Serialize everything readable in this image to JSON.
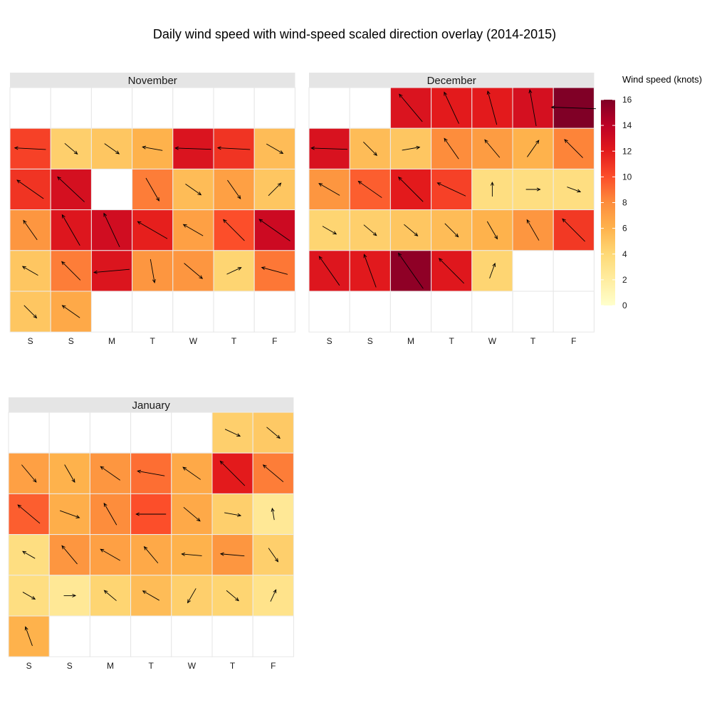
{
  "chart_data": {
    "type": "heatmap",
    "title": "Daily wind speed with wind-speed scaled direction overlay (2014-2015)",
    "weekday_labels": [
      "S",
      "S",
      "M",
      "T",
      "W",
      "T",
      "F"
    ],
    "legend": {
      "title": "Wind speed (knots)",
      "ticks": [
        0,
        2,
        4,
        6,
        8,
        10,
        12,
        14,
        16
      ],
      "range": [
        0,
        16
      ],
      "colors": [
        "#FFFFCC",
        "#FFEDA0",
        "#FED976",
        "#FEB24C",
        "#FD8D3C",
        "#FC4E2A",
        "#E31A1C",
        "#BD0026",
        "#800026"
      ]
    },
    "months": [
      {
        "name": "November",
        "days": [
          {
            "week": 1,
            "weekday": 0,
            "speed": 10.5,
            "dir": 177
          },
          {
            "week": 1,
            "weekday": 1,
            "speed": 4.5,
            "dir": -40
          },
          {
            "week": 1,
            "weekday": 2,
            "speed": 5.0,
            "dir": -35
          },
          {
            "week": 1,
            "weekday": 3,
            "speed": 6.0,
            "dir": 170
          },
          {
            "week": 1,
            "weekday": 4,
            "speed": 12.5,
            "dir": 178
          },
          {
            "week": 1,
            "weekday": 5,
            "speed": 11.0,
            "dir": 177
          },
          {
            "week": 1,
            "weekday": 6,
            "speed": 5.5,
            "dir": -30
          },
          {
            "week": 2,
            "weekday": 0,
            "speed": 11.0,
            "dir": 145
          },
          {
            "week": 2,
            "weekday": 1,
            "speed": 12.8,
            "dir": 137
          },
          {
            "week": 2,
            "weekday": 3,
            "speed": 8.5,
            "dir": -60
          },
          {
            "week": 2,
            "weekday": 4,
            "speed": 5.5,
            "dir": -35
          },
          {
            "week": 2,
            "weekday": 5,
            "speed": 7.0,
            "dir": -55
          },
          {
            "week": 2,
            "weekday": 6,
            "speed": 5.0,
            "dir": 45
          },
          {
            "week": 3,
            "weekday": 0,
            "speed": 7.5,
            "dir": 125
          },
          {
            "week": 3,
            "weekday": 1,
            "speed": 12.3,
            "dir": 120
          },
          {
            "week": 3,
            "weekday": 2,
            "speed": 13.0,
            "dir": 115
          },
          {
            "week": 3,
            "weekday": 3,
            "speed": 11.8,
            "dir": 150
          },
          {
            "week": 3,
            "weekday": 4,
            "speed": 7.0,
            "dir": 150
          },
          {
            "week": 3,
            "weekday": 5,
            "speed": 10.0,
            "dir": 135
          },
          {
            "week": 3,
            "weekday": 6,
            "speed": 13.2,
            "dir": 145
          },
          {
            "week": 4,
            "weekday": 0,
            "speed": 5.0,
            "dir": 150
          },
          {
            "week": 4,
            "weekday": 1,
            "speed": 8.5,
            "dir": 135
          },
          {
            "week": 4,
            "weekday": 2,
            "speed": 12.4,
            "dir": 185
          },
          {
            "week": 4,
            "weekday": 3,
            "speed": 7.5,
            "dir": -80
          },
          {
            "week": 4,
            "weekday": 4,
            "speed": 7.5,
            "dir": -40
          },
          {
            "week": 4,
            "weekday": 5,
            "speed": 4.2,
            "dir": 25
          },
          {
            "week": 4,
            "weekday": 6,
            "speed": 8.7,
            "dir": 165
          },
          {
            "week": 5,
            "weekday": 0,
            "speed": 5.0,
            "dir": -45
          },
          {
            "week": 5,
            "weekday": 1,
            "speed": 6.5,
            "dir": 145
          }
        ]
      },
      {
        "name": "December",
        "days": [
          {
            "week": 0,
            "weekday": 2,
            "speed": 12.5,
            "dir": 130
          },
          {
            "week": 0,
            "weekday": 3,
            "speed": 12.0,
            "dir": 115
          },
          {
            "week": 0,
            "weekday": 4,
            "speed": 12.0,
            "dir": 105
          },
          {
            "week": 0,
            "weekday": 5,
            "speed": 12.8,
            "dir": 100
          },
          {
            "week": 0,
            "weekday": 6,
            "speed": 16.0,
            "dir": 178
          },
          {
            "week": 1,
            "weekday": 0,
            "speed": 12.6,
            "dir": 178
          },
          {
            "week": 1,
            "weekday": 1,
            "speed": 5.5,
            "dir": -45
          },
          {
            "week": 1,
            "weekday": 2,
            "speed": 5.0,
            "dir": 10
          },
          {
            "week": 1,
            "weekday": 3,
            "speed": 8.0,
            "dir": 125
          },
          {
            "week": 1,
            "weekday": 4,
            "speed": 7.2,
            "dir": 130
          },
          {
            "week": 1,
            "weekday": 5,
            "speed": 6.0,
            "dir": 55
          },
          {
            "week": 1,
            "weekday": 6,
            "speed": 8.3,
            "dir": 135
          },
          {
            "week": 2,
            "weekday": 0,
            "speed": 7.5,
            "dir": 150
          },
          {
            "week": 2,
            "weekday": 1,
            "speed": 9.5,
            "dir": 145
          },
          {
            "week": 2,
            "weekday": 2,
            "speed": 12.0,
            "dir": 135
          },
          {
            "week": 2,
            "weekday": 3,
            "speed": 10.5,
            "dir": 155
          },
          {
            "week": 2,
            "weekday": 4,
            "speed": 3.5,
            "dir": 90
          },
          {
            "week": 2,
            "weekday": 5,
            "speed": 3.5,
            "dir": 0
          },
          {
            "week": 2,
            "weekday": 6,
            "speed": 3.5,
            "dir": -20
          },
          {
            "week": 3,
            "weekday": 0,
            "speed": 4.2,
            "dir": -30
          },
          {
            "week": 3,
            "weekday": 1,
            "speed": 4.5,
            "dir": -40
          },
          {
            "week": 3,
            "weekday": 2,
            "speed": 5.0,
            "dir": -40
          },
          {
            "week": 3,
            "weekday": 3,
            "speed": 5.5,
            "dir": -45
          },
          {
            "week": 3,
            "weekday": 4,
            "speed": 6.0,
            "dir": -60
          },
          {
            "week": 3,
            "weekday": 5,
            "speed": 7.5,
            "dir": 120
          },
          {
            "week": 3,
            "weekday": 6,
            "speed": 10.8,
            "dir": 135
          },
          {
            "week": 4,
            "weekday": 0,
            "speed": 12.3,
            "dir": 125
          },
          {
            "week": 4,
            "weekday": 1,
            "speed": 12.1,
            "dir": 110
          },
          {
            "week": 4,
            "weekday": 2,
            "speed": 15.5,
            "dir": 125
          },
          {
            "week": 4,
            "weekday": 3,
            "speed": 12.2,
            "dir": 135
          },
          {
            "week": 4,
            "weekday": 4,
            "speed": 4.2,
            "dir": 70
          }
        ]
      },
      {
        "name": "January",
        "days": [
          {
            "week": 0,
            "weekday": 5,
            "speed": 4.5,
            "dir": -25
          },
          {
            "week": 0,
            "weekday": 6,
            "speed": 4.8,
            "dir": -40
          },
          {
            "week": 1,
            "weekday": 0,
            "speed": 7.0,
            "dir": -50
          },
          {
            "week": 1,
            "weekday": 1,
            "speed": 6.0,
            "dir": -60
          },
          {
            "week": 1,
            "weekday": 2,
            "speed": 7.5,
            "dir": 145
          },
          {
            "week": 1,
            "weekday": 3,
            "speed": 9.0,
            "dir": 170
          },
          {
            "week": 1,
            "weekday": 4,
            "speed": 6.5,
            "dir": 145
          },
          {
            "week": 1,
            "weekday": 5,
            "speed": 12.0,
            "dir": 135
          },
          {
            "week": 1,
            "weekday": 6,
            "speed": 8.5,
            "dir": 140
          },
          {
            "week": 2,
            "weekday": 0,
            "speed": 9.5,
            "dir": 140
          },
          {
            "week": 2,
            "weekday": 1,
            "speed": 6.2,
            "dir": -20
          },
          {
            "week": 2,
            "weekday": 2,
            "speed": 8.0,
            "dir": 120
          },
          {
            "week": 2,
            "weekday": 3,
            "speed": 10.0,
            "dir": 180
          },
          {
            "week": 2,
            "weekday": 4,
            "speed": 6.5,
            "dir": -40
          },
          {
            "week": 2,
            "weekday": 5,
            "speed": 4.5,
            "dir": -10
          },
          {
            "week": 2,
            "weekday": 6,
            "speed": 2.5,
            "dir": 100
          },
          {
            "week": 3,
            "weekday": 0,
            "speed": 3.5,
            "dir": 150
          },
          {
            "week": 3,
            "weekday": 1,
            "speed": 7.5,
            "dir": 130
          },
          {
            "week": 3,
            "weekday": 2,
            "speed": 7.0,
            "dir": 150
          },
          {
            "week": 3,
            "weekday": 3,
            "speed": 6.5,
            "dir": 130
          },
          {
            "week": 3,
            "weekday": 4,
            "speed": 6.0,
            "dir": 175
          },
          {
            "week": 3,
            "weekday": 5,
            "speed": 7.5,
            "dir": 175
          },
          {
            "week": 3,
            "weekday": 6,
            "speed": 4.5,
            "dir": -55
          },
          {
            "week": 4,
            "weekday": 0,
            "speed": 3.5,
            "dir": -30
          },
          {
            "week": 4,
            "weekday": 1,
            "speed": 2.5,
            "dir": 0
          },
          {
            "week": 4,
            "weekday": 2,
            "speed": 4.2,
            "dir": 140
          },
          {
            "week": 4,
            "weekday": 3,
            "speed": 5.5,
            "dir": 150
          },
          {
            "week": 4,
            "weekday": 4,
            "speed": 4.5,
            "dir": 240
          },
          {
            "week": 4,
            "weekday": 5,
            "speed": 4.2,
            "dir": -40
          },
          {
            "week": 4,
            "weekday": 6,
            "speed": 3.0,
            "dir": 65
          },
          {
            "week": 5,
            "weekday": 0,
            "speed": 6.0,
            "dir": 110
          }
        ]
      }
    ]
  }
}
